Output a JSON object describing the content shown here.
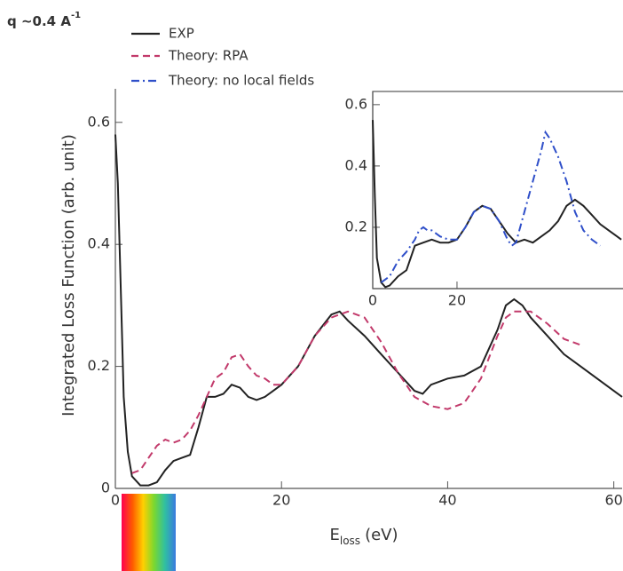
{
  "title": "q ~0.4 A",
  "title_sup": "-1",
  "legend": [
    {
      "name": "EXP",
      "color": "#222222",
      "dash": "none"
    },
    {
      "name": "Theory: RPA",
      "color": "#c23a6b",
      "dash": "8 5"
    },
    {
      "name": "Theory: no local fields",
      "color": "#2f4fc9",
      "dash": "9 4 2 4"
    }
  ],
  "chart_data": [
    {
      "type": "line",
      "ylabel": "Integrated Loss Function (arb. unit)",
      "xlabel": {
        "main": "E",
        "sub": "loss",
        "unit": "(eV)"
      },
      "xlim": [
        0,
        61
      ],
      "ylim": [
        0,
        0.655
      ],
      "xticks": [
        0,
        20,
        40,
        60
      ],
      "yticks": [
        0,
        0.2,
        0.4,
        0.6
      ],
      "series": [
        {
          "color": "#222222",
          "dash": "none",
          "x": [
            0,
            0.3,
            0.7,
            1,
            1.5,
            2,
            3,
            4,
            5,
            6,
            7,
            8,
            9,
            10,
            11,
            12,
            13,
            14,
            15,
            16,
            17,
            18,
            19,
            20,
            22,
            24,
            26,
            27,
            28,
            30,
            32,
            34,
            36,
            37,
            38,
            40,
            42,
            44,
            46,
            47,
            48,
            49,
            50,
            52,
            54,
            56,
            58,
            60,
            61
          ],
          "values": [
            0.58,
            0.5,
            0.3,
            0.15,
            0.06,
            0.02,
            0.005,
            0.005,
            0.01,
            0.03,
            0.045,
            0.05,
            0.055,
            0.1,
            0.15,
            0.15,
            0.155,
            0.17,
            0.165,
            0.15,
            0.145,
            0.15,
            0.16,
            0.17,
            0.2,
            0.25,
            0.285,
            0.29,
            0.275,
            0.25,
            0.22,
            0.19,
            0.16,
            0.155,
            0.17,
            0.18,
            0.185,
            0.2,
            0.26,
            0.3,
            0.31,
            0.3,
            0.28,
            0.25,
            0.22,
            0.2,
            0.18,
            0.16,
            0.15
          ]
        },
        {
          "color": "#c23a6b",
          "dash": "8 5",
          "x": [
            2,
            3,
            4,
            5,
            6,
            7,
            8,
            9,
            10,
            11,
            12,
            13,
            14,
            15,
            16,
            17,
            18,
            19,
            20,
            22,
            24,
            26,
            27,
            28,
            30,
            32,
            34,
            36,
            38,
            40,
            42,
            44,
            46,
            47,
            48,
            50,
            52,
            54,
            56
          ],
          "values": [
            0.025,
            0.03,
            0.05,
            0.07,
            0.08,
            0.075,
            0.08,
            0.095,
            0.12,
            0.15,
            0.18,
            0.19,
            0.215,
            0.22,
            0.2,
            0.185,
            0.18,
            0.17,
            0.17,
            0.2,
            0.25,
            0.28,
            0.285,
            0.29,
            0.28,
            0.24,
            0.19,
            0.15,
            0.135,
            0.13,
            0.14,
            0.18,
            0.25,
            0.28,
            0.29,
            0.29,
            0.27,
            0.245,
            0.235
          ]
        }
      ]
    },
    {
      "type": "line",
      "xlim": [
        0,
        59.4
      ],
      "ylim": [
        0,
        0.643
      ],
      "xticks": [
        0,
        20
      ],
      "yticks": [
        0.2,
        0.4,
        0.6
      ],
      "series": [
        {
          "color": "#222222",
          "dash": "none",
          "x": [
            0,
            0.5,
            1,
            2,
            3,
            4,
            6,
            8,
            10,
            12,
            14,
            16,
            18,
            20,
            22,
            24,
            26,
            28,
            30,
            32,
            34,
            36,
            38,
            40,
            42,
            44,
            46,
            48,
            50,
            52,
            54,
            56,
            58,
            59
          ],
          "values": [
            0.55,
            0.3,
            0.1,
            0.02,
            0.005,
            0.01,
            0.04,
            0.06,
            0.14,
            0.15,
            0.16,
            0.15,
            0.15,
            0.16,
            0.2,
            0.25,
            0.27,
            0.26,
            0.22,
            0.18,
            0.15,
            0.16,
            0.15,
            0.17,
            0.19,
            0.22,
            0.27,
            0.29,
            0.27,
            0.24,
            0.21,
            0.19,
            0.17,
            0.16
          ]
        },
        {
          "color": "#2f4fc9",
          "dash": "9 4 2 4",
          "x": [
            2,
            4,
            6,
            8,
            10,
            11,
            12,
            13,
            14,
            16,
            18,
            20,
            22,
            24,
            26,
            28,
            30,
            32,
            33,
            34,
            36,
            38,
            40,
            41,
            42,
            44,
            46,
            48,
            50,
            52,
            54
          ],
          "values": [
            0.02,
            0.04,
            0.09,
            0.12,
            0.16,
            0.19,
            0.2,
            0.19,
            0.19,
            0.17,
            0.16,
            0.16,
            0.2,
            0.25,
            0.27,
            0.26,
            0.22,
            0.16,
            0.14,
            0.15,
            0.25,
            0.35,
            0.45,
            0.51,
            0.49,
            0.43,
            0.35,
            0.25,
            0.19,
            0.16,
            0.14
          ]
        }
      ]
    }
  ]
}
